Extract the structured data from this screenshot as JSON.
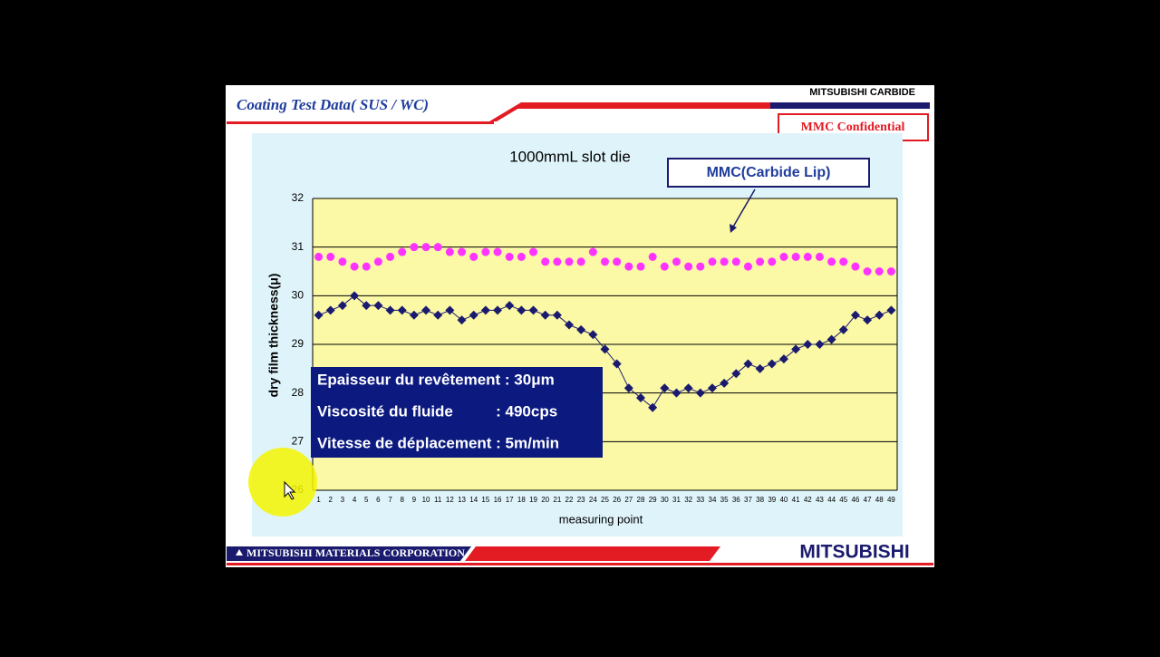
{
  "slide": {
    "title": "Coating Test Data( SUS / WC)",
    "brand_top": "MITSUBISHI CARBIDE",
    "confidential": "MMC Confidential",
    "footer_company": "MITSUBISHI MATERIALS CORPORATION",
    "footer_logo": "MITSUBISHI"
  },
  "chart_data": {
    "type": "line",
    "title": "1000mmL slot die",
    "x_label": "measuring point",
    "y_label": "dry film thickness(μ)",
    "annotation": "MMC(Carbide Lip)",
    "info_box": [
      "Epaisseur du revêtement : 30μm",
      "Viscosité du fluide          : 490cps",
      "Vitesse de déplacement : 5m/min"
    ],
    "categories": [
      1,
      2,
      3,
      4,
      5,
      6,
      7,
      8,
      9,
      10,
      11,
      12,
      13,
      14,
      15,
      16,
      17,
      18,
      19,
      20,
      21,
      22,
      23,
      24,
      25,
      26,
      27,
      28,
      29,
      30,
      31,
      32,
      33,
      34,
      35,
      36,
      37,
      38,
      39,
      40,
      41,
      42,
      43,
      44,
      45,
      46,
      47,
      48,
      49
    ],
    "series": [
      {
        "color": "#ff33ff",
        "marker": "circle",
        "line": false,
        "values": [
          30.8,
          30.8,
          30.7,
          30.6,
          30.6,
          30.7,
          30.8,
          30.9,
          31.0,
          31.0,
          31.0,
          30.9,
          30.9,
          30.8,
          30.9,
          30.9,
          30.8,
          30.8,
          30.9,
          30.7,
          30.7,
          30.7,
          30.7,
          30.9,
          30.7,
          30.7,
          30.6,
          30.6,
          30.8,
          30.6,
          30.7,
          30.6,
          30.6,
          30.7,
          30.7,
          30.7,
          30.6,
          30.7,
          30.7,
          30.8,
          30.8,
          30.8,
          30.8,
          30.7,
          30.7,
          30.6,
          30.5,
          30.5,
          30.5
        ]
      },
      {
        "color": "#1a1a6e",
        "marker": "diamond",
        "line": true,
        "values": [
          29.6,
          29.7,
          29.8,
          30.0,
          29.8,
          29.8,
          29.7,
          29.7,
          29.6,
          29.7,
          29.6,
          29.7,
          29.5,
          29.6,
          29.7,
          29.7,
          29.8,
          29.7,
          29.7,
          29.6,
          29.6,
          29.4,
          29.3,
          29.2,
          28.9,
          28.6,
          28.1,
          27.9,
          27.7,
          28.1,
          28.0,
          28.1,
          28.0,
          28.1,
          28.2,
          28.4,
          28.6,
          28.5,
          28.6,
          28.7,
          28.9,
          29.0,
          29.0,
          29.1,
          29.3,
          29.6,
          29.5,
          29.6,
          29.7
        ]
      }
    ],
    "ylim": [
      26,
      32
    ],
    "yticks": [
      26,
      27,
      28,
      29,
      30,
      31,
      32
    ],
    "grid": true
  }
}
